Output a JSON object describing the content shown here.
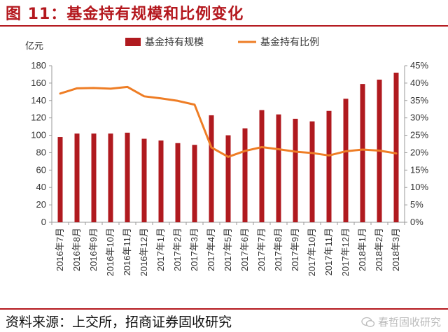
{
  "title": "图 11：基金持有规模和比例变化",
  "source": "资料来源：上交所，招商证券固收研究",
  "watermark": "春哲固收研究",
  "watermark_icon": "wechat-icon",
  "colors": {
    "bar": "#b01a1f",
    "line": "#ee7d25",
    "title": "#b4181e"
  },
  "chart_data": {
    "type": "bar",
    "ylabel": "亿元",
    "categories": [
      "2016年7月",
      "2016年8月",
      "2016年9月",
      "2016年10月",
      "2016年11月",
      "2016年12月",
      "2017年1月",
      "2017年2月",
      "2017年3月",
      "2017年4月",
      "2017年5月",
      "2017年6月",
      "2017年7月",
      "2017年8月",
      "2017年9月",
      "2017年10月",
      "2017年11月",
      "2017年12月",
      "2018年1月",
      "2018年2月",
      "2018年3月"
    ],
    "series": [
      {
        "name": "基金持有规模",
        "type": "bar",
        "axis": "left",
        "values": [
          98,
          102,
          102,
          102,
          103,
          96,
          94,
          91,
          89,
          123,
          100,
          108,
          129,
          124,
          119,
          116,
          128,
          142,
          159,
          164,
          172
        ]
      },
      {
        "name": "基金持有比例",
        "type": "line",
        "axis": "right",
        "values": [
          37.0,
          38.5,
          38.6,
          38.4,
          38.9,
          36.2,
          35.6,
          34.9,
          33.8,
          21.5,
          18.8,
          20.5,
          21.6,
          21.0,
          20.3,
          19.9,
          19.2,
          20.4,
          20.9,
          20.6,
          19.8
        ]
      }
    ],
    "y_left": {
      "min": 0,
      "max": 180,
      "step": 20,
      "ticks": [
        "0",
        "20",
        "40",
        "60",
        "80",
        "100",
        "120",
        "140",
        "160",
        "180"
      ]
    },
    "y_right": {
      "min": 0,
      "max": 45,
      "step": 5,
      "ticks": [
        "0%",
        "5%",
        "10%",
        "15%",
        "20%",
        "25%",
        "30%",
        "35%",
        "40%",
        "45%"
      ]
    },
    "legend_position": "top",
    "grid": false
  }
}
